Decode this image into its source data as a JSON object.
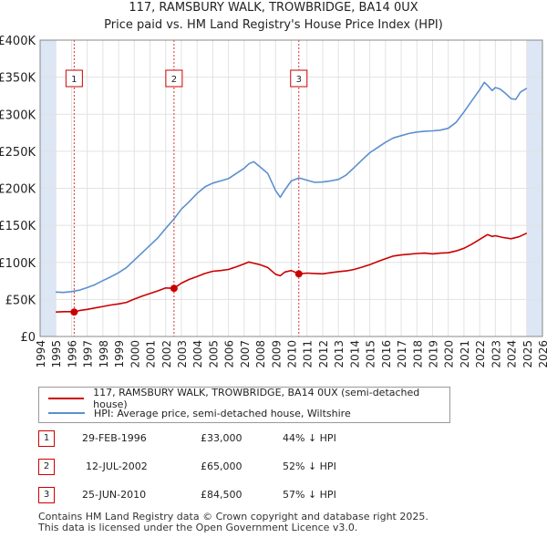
{
  "title_line1": "117, RAMSBURY WALK, TROWBRIDGE, BA14 0UX",
  "title_line2": "Price paid vs. HM Land Registry's House Price Index (HPI)",
  "colors": {
    "price": "#cc0000",
    "hpi": "#5b8fd0",
    "shade": "#dce6f5",
    "marker_border": "#cc0000",
    "vline": "#dd3333"
  },
  "legend": {
    "price_label": "117, RAMSBURY WALK, TROWBRIDGE, BA14 0UX (semi-detached house)",
    "hpi_label": "HPI: Average price, semi-detached house, Wiltshire"
  },
  "transactions": [
    {
      "num": "1",
      "date": "29-FEB-1996",
      "price": "£33,000",
      "hpi_rel": "44% ↓ HPI"
    },
    {
      "num": "2",
      "date": "12-JUL-2002",
      "price": "£65,000",
      "hpi_rel": "52% ↓ HPI"
    },
    {
      "num": "3",
      "date": "25-JUN-2010",
      "price": "£84,500",
      "hpi_rel": "57% ↓ HPI"
    }
  ],
  "footer_line1": "Contains HM Land Registry data © Crown copyright and database right 2025.",
  "footer_line2": "This data is licensed under the Open Government Licence v3.0.",
  "chart_data": {
    "type": "line",
    "title": "117, RAMSBURY WALK, TROWBRIDGE, BA14 0UX",
    "subtitle": "Price paid vs. HM Land Registry's House Price Index (HPI)",
    "xlim": [
      1994,
      2026
    ],
    "ylim": [
      0,
      400000
    ],
    "y_ticks": [
      0,
      50000,
      100000,
      150000,
      200000,
      250000,
      300000,
      350000,
      400000
    ],
    "y_tick_labels": [
      "£0",
      "£50K",
      "£100K",
      "£150K",
      "£200K",
      "£250K",
      "£300K",
      "£350K",
      "£400K"
    ],
    "x_ticks": [
      1994,
      1995,
      1996,
      1997,
      1998,
      1999,
      2000,
      2001,
      2002,
      2003,
      2004,
      2005,
      2006,
      2007,
      2008,
      2009,
      2010,
      2011,
      2012,
      2013,
      2014,
      2015,
      2016,
      2017,
      2018,
      2019,
      2020,
      2021,
      2022,
      2023,
      2024,
      2025,
      2026
    ],
    "x_tick_labels": [
      "1994",
      "1995",
      "1996",
      "1997",
      "1998",
      "1999",
      "2000",
      "2001",
      "2002",
      "2003",
      "2004",
      "2005",
      "2006",
      "2007",
      "2008",
      "2009",
      "2010",
      "2011",
      "2012",
      "2013",
      "2014",
      "2015",
      "2016",
      "2017",
      "2018",
      "2019",
      "2020",
      "2021",
      "2022",
      "2023",
      "2024",
      "2025",
      "2026"
    ],
    "shaded_ranges": [
      [
        1994,
        1995.0
      ],
      [
        2025.0,
        2026
      ]
    ],
    "grid": true,
    "series": [
      {
        "name": "117, RAMSBURY WALK, TROWBRIDGE, BA14 0UX (semi-detached house)",
        "x": [
          1995.0,
          1995.5,
          1996.0,
          1996.17,
          1996.5,
          1997.0,
          1997.5,
          1998.0,
          1998.5,
          1999.0,
          1999.5,
          2000.0,
          2000.5,
          2001.0,
          2001.5,
          2002.0,
          2002.53,
          2003.0,
          2003.5,
          2004.0,
          2004.5,
          2005.0,
          2005.5,
          2006.0,
          2006.5,
          2007.0,
          2007.3,
          2007.6,
          2008.0,
          2008.5,
          2009.0,
          2009.3,
          2009.6,
          2010.0,
          2010.48,
          2011.0,
          2011.5,
          2012.0,
          2012.5,
          2013.0,
          2013.5,
          2014.0,
          2014.5,
          2015.0,
          2015.5,
          2016.0,
          2016.5,
          2017.0,
          2017.5,
          2018.0,
          2018.5,
          2019.0,
          2019.5,
          2020.0,
          2020.5,
          2021.0,
          2021.5,
          2022.0,
          2022.5,
          2022.8,
          2023.0,
          2023.5,
          2024.0,
          2024.5,
          2025.0
        ],
        "values": [
          33000,
          33500,
          33500,
          33000,
          35000,
          36500,
          38500,
          40500,
          42500,
          44000,
          46000,
          50500,
          54500,
          58000,
          61500,
          65500,
          65000,
          72000,
          77000,
          81000,
          85000,
          88000,
          89000,
          90500,
          94000,
          98000,
          100500,
          99000,
          97000,
          93000,
          84000,
          82000,
          87000,
          89000,
          84500,
          85500,
          85000,
          84500,
          86000,
          87500,
          88500,
          90500,
          93500,
          97000,
          101000,
          105000,
          108500,
          110000,
          111000,
          112000,
          112500,
          111500,
          112500,
          113000,
          115500,
          119000,
          124500,
          131000,
          137500,
          135000,
          136000,
          133500,
          132000,
          134500,
          139500
        ]
      },
      {
        "name": "HPI: Average price, semi-detached house, Wiltshire",
        "x": [
          1995.0,
          1995.5,
          1996.0,
          1996.5,
          1997.0,
          1997.5,
          1998.0,
          1998.5,
          1999.0,
          1999.5,
          2000.0,
          2000.5,
          2001.0,
          2001.5,
          2002.0,
          2002.5,
          2003.0,
          2003.5,
          2004.0,
          2004.5,
          2005.0,
          2005.5,
          2006.0,
          2006.5,
          2007.0,
          2007.3,
          2007.6,
          2008.0,
          2008.5,
          2009.0,
          2009.3,
          2009.6,
          2010.0,
          2010.5,
          2011.0,
          2011.5,
          2012.0,
          2012.5,
          2013.0,
          2013.5,
          2014.0,
          2014.5,
          2015.0,
          2015.5,
          2016.0,
          2016.5,
          2017.0,
          2017.5,
          2018.0,
          2018.5,
          2019.0,
          2019.5,
          2020.0,
          2020.5,
          2021.0,
          2021.5,
          2022.0,
          2022.3,
          2022.5,
          2022.8,
          2023.0,
          2023.3,
          2023.6,
          2024.0,
          2024.3,
          2024.6,
          2025.0
        ],
        "values": [
          60000,
          59500,
          60500,
          62500,
          66000,
          70000,
          75500,
          80500,
          86000,
          93000,
          103000,
          113000,
          123000,
          133000,
          146000,
          158000,
          172000,
          182000,
          193000,
          202000,
          207000,
          210000,
          213000,
          220000,
          227000,
          233000,
          236000,
          229000,
          220000,
          197000,
          188000,
          198000,
          210000,
          214000,
          211000,
          208000,
          208500,
          210000,
          212000,
          218000,
          228000,
          238000,
          248000,
          255000,
          262000,
          268000,
          271000,
          274000,
          276000,
          277000,
          277500,
          278500,
          281000,
          289000,
          303000,
          318000,
          333000,
          343000,
          339000,
          332000,
          336000,
          334000,
          329000,
          321000,
          320000,
          330000,
          335000
        ]
      }
    ],
    "markers": [
      {
        "label": "1",
        "x": 1996.17,
        "value": 33000
      },
      {
        "label": "2",
        "x": 2002.53,
        "value": 65000
      },
      {
        "label": "3",
        "x": 2010.48,
        "value": 84500
      }
    ]
  }
}
